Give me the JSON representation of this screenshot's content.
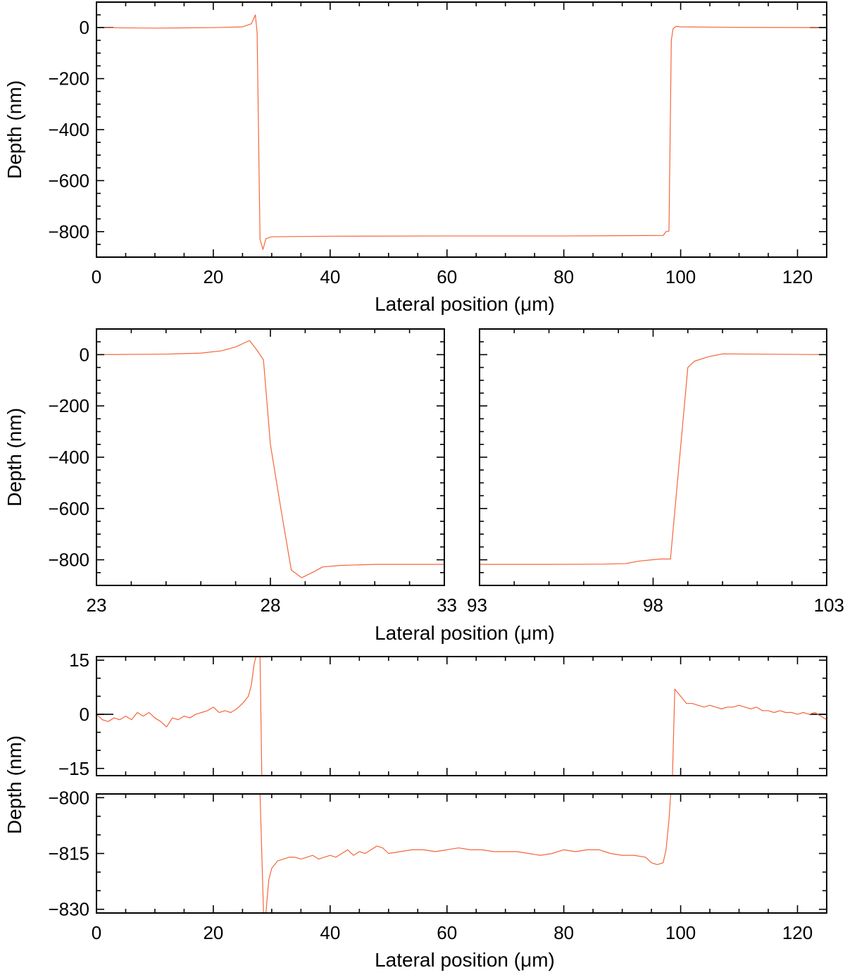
{
  "colors": {
    "series": "#f4663a",
    "axes": "#000000"
  },
  "chart_data": [
    {
      "id": "top",
      "type": "line",
      "xlabel": "Lateral position (μm)",
      "ylabel": "Depth (nm)",
      "xlim": [
        0,
        125
      ],
      "ylim": [
        -900,
        100
      ],
      "xticks": [
        0,
        20,
        40,
        60,
        80,
        100,
        120
      ],
      "xtick_labels": [
        "0",
        "20",
        "40",
        "60",
        "80",
        "100",
        "120"
      ],
      "xminor": 5,
      "yticks": [
        0,
        -200,
        -400,
        -600,
        -800
      ],
      "ytick_labels": [
        "0",
        "−200",
        "−400",
        "−600",
        "−800"
      ],
      "yminor": 50,
      "zero_line": true,
      "series": [
        {
          "x": [
            0,
            10,
            20,
            25,
            26.5,
            27.2,
            27.5,
            28.0,
            28.5,
            29.0,
            30,
            40,
            60,
            80,
            97,
            97.5,
            98.0,
            98.4,
            98.7,
            99.2,
            100,
            110,
            125
          ],
          "y": [
            0,
            -2,
            0,
            3,
            15,
            50,
            -20,
            -830,
            -870,
            -828,
            -820,
            -818,
            -817,
            -817,
            -815,
            -800,
            -798,
            -50,
            -5,
            5,
            3,
            1,
            0
          ]
        }
      ]
    },
    {
      "id": "middle-left",
      "type": "line",
      "xlabel": "",
      "ylabel": "Depth (nm)",
      "xlim": [
        23,
        33
      ],
      "ylim": [
        -900,
        100
      ],
      "xticks": [
        23,
        28,
        33
      ],
      "xtick_labels": [
        "23",
        "28",
        "33"
      ],
      "xminor": 1,
      "yticks": [
        0,
        -200,
        -400,
        -600,
        -800
      ],
      "ytick_labels": [
        "0",
        "−200",
        "−400",
        "−600",
        "−800"
      ],
      "yminor": 50,
      "zero_line": false,
      "series": [
        {
          "x": [
            23,
            25,
            26,
            26.6,
            27.0,
            27.4,
            27.6,
            27.8,
            28.0,
            28.3,
            28.6,
            28.9,
            29.2,
            29.5,
            30,
            31,
            33
          ],
          "y": [
            0,
            2,
            6,
            15,
            30,
            55,
            20,
            -20,
            -350,
            -600,
            -840,
            -870,
            -850,
            -828,
            -822,
            -818,
            -818
          ]
        }
      ]
    },
    {
      "id": "middle-right",
      "type": "line",
      "xlabel": "Lateral position (μm)",
      "ylabel": "",
      "xlim": [
        93,
        103
      ],
      "ylim": [
        -900,
        100
      ],
      "xticks": [
        93,
        98,
        103
      ],
      "xtick_labels": [
        "93",
        "98",
        "103"
      ],
      "xminor": 1,
      "yticks": [
        0,
        -200,
        -400,
        -600,
        -800
      ],
      "ytick_labels": [],
      "yminor": 50,
      "zero_line": false,
      "series": [
        {
          "x": [
            93,
            95,
            96.5,
            97.2,
            97.6,
            98.2,
            98.5,
            99.0,
            99.2,
            99.6,
            100,
            103
          ],
          "y": [
            -818,
            -818,
            -817,
            -815,
            -805,
            -797,
            -797,
            -50,
            -25,
            -8,
            3,
            0
          ]
        }
      ]
    },
    {
      "id": "bottom-upper",
      "type": "line",
      "xlabel": "",
      "ylabel": "Depth (nm)",
      "xlim": [
        0,
        125
      ],
      "ylim": [
        -17,
        16
      ],
      "xticks": [
        0,
        20,
        40,
        60,
        80,
        100,
        120
      ],
      "xtick_labels": [],
      "xminor": 5,
      "yticks": [
        15,
        0,
        -15
      ],
      "ytick_labels": [
        "15",
        "0",
        "−15"
      ],
      "yminor": 5,
      "zero_line": true,
      "series": [
        {
          "x": [
            0,
            1,
            2,
            3,
            4,
            5,
            6,
            7,
            8,
            9,
            10,
            11,
            12,
            13,
            14,
            15,
            16,
            17,
            18,
            19,
            20,
            21,
            22,
            23,
            24,
            25,
            26,
            26.5,
            27,
            27.3,
            27.6,
            28,
            28.3,
            98.6,
            99,
            99.5,
            100,
            101,
            102,
            103,
            104,
            105,
            106,
            107,
            108,
            109,
            110,
            111,
            112,
            113,
            114,
            115,
            116,
            117,
            118,
            119,
            120,
            121,
            122,
            123,
            124,
            125
          ],
          "y": [
            0,
            -1.5,
            -2,
            -1,
            -1.5,
            -0.5,
            -1.5,
            0.5,
            -0.5,
            0.5,
            -1,
            -2,
            -3.5,
            -1,
            -1.5,
            -0.5,
            -1,
            0,
            0.5,
            1,
            2,
            0.5,
            1,
            0.5,
            1.5,
            3,
            5,
            8,
            14,
            16,
            16,
            16,
            -17,
            -17,
            7,
            6,
            5,
            3,
            3,
            2.5,
            2,
            2.5,
            2,
            1.5,
            2,
            2,
            2.5,
            2,
            1.5,
            2,
            1,
            1,
            0.5,
            1,
            0.5,
            0.5,
            0,
            0.5,
            0,
            0.5,
            -0.5,
            -1.5
          ]
        }
      ]
    },
    {
      "id": "bottom-lower",
      "type": "line",
      "xlabel": "Lateral position (μm)",
      "ylabel": "",
      "xlim": [
        0,
        125
      ],
      "ylim": [
        -831,
        -799
      ],
      "xticks": [
        0,
        20,
        40,
        60,
        80,
        100,
        120
      ],
      "xtick_labels": [
        "0",
        "20",
        "40",
        "60",
        "80",
        "100",
        "120"
      ],
      "xminor": 5,
      "yticks": [
        -800,
        -815,
        -830
      ],
      "ytick_labels": [
        "−800",
        "−815",
        "−830"
      ],
      "yminor": 5,
      "zero_line": false,
      "series": [
        {
          "x": [
            28,
            28.6,
            29,
            29.5,
            30,
            31,
            32,
            33,
            34,
            35,
            36,
            37,
            38,
            39,
            40,
            41,
            42,
            43,
            44,
            45,
            46,
            47,
            48,
            49,
            50,
            52,
            54,
            56,
            58,
            60,
            62,
            64,
            66,
            68,
            70,
            72,
            74,
            76,
            78,
            80,
            82,
            84,
            86,
            88,
            90,
            92,
            94,
            95,
            96,
            97,
            97.5,
            98,
            98.3
          ],
          "y": [
            -799,
            -831,
            -831,
            -822,
            -819,
            -817,
            -816.5,
            -816,
            -816,
            -816.5,
            -816,
            -815.5,
            -816.5,
            -816,
            -815.5,
            -816,
            -815,
            -814,
            -815.5,
            -814.5,
            -815,
            -814,
            -813,
            -813.5,
            -815,
            -814.5,
            -814,
            -814,
            -814.5,
            -814,
            -813.5,
            -814,
            -814,
            -814.5,
            -814.5,
            -814.5,
            -815,
            -815.5,
            -815,
            -814,
            -814.5,
            -814,
            -814,
            -815,
            -815.5,
            -815.5,
            -816,
            -817.5,
            -818,
            -817.5,
            -814,
            -806,
            -799
          ]
        }
      ]
    }
  ]
}
